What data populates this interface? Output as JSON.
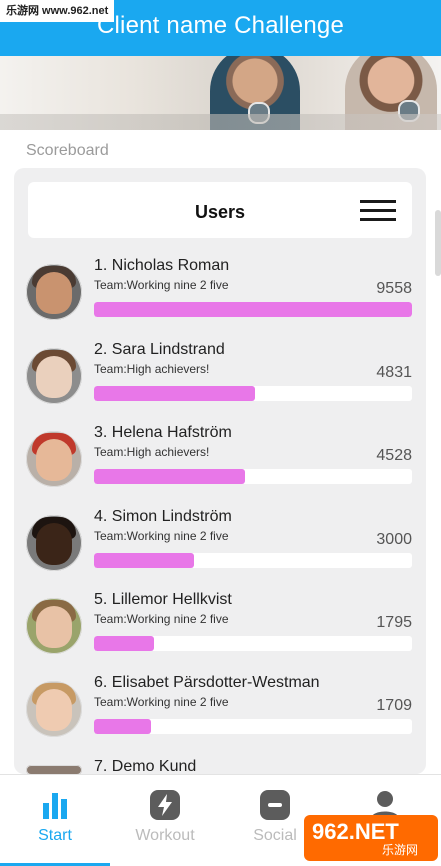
{
  "watermark": {
    "text": "乐游网 www.962.net"
  },
  "header": {
    "title": "Client name Challenge"
  },
  "section_label": "Scoreboard",
  "users_card": {
    "title": "Users"
  },
  "leaderboard": [
    {
      "name": "1. Nicholas Roman",
      "team": "Team:Working nine 2 five",
      "score": "9558",
      "progress": 1.0
    },
    {
      "name": "2. Sara Lindstrand",
      "team": "Team:High achievers!",
      "score": "4831",
      "progress": 0.505
    },
    {
      "name": "3. Helena Hafström",
      "team": "Team:High achievers!",
      "score": "4528",
      "progress": 0.474
    },
    {
      "name": "4. Simon Lindström",
      "team": "Team:Working nine 2 five",
      "score": "3000",
      "progress": 0.314
    },
    {
      "name": "5. Lillemor Hellkvist",
      "team": "Team:Working nine 2 five",
      "score": "1795",
      "progress": 0.188
    },
    {
      "name": "6. Elisabet Pärsdotter-Westman",
      "team": "Team:Working nine 2 five",
      "score": "1709",
      "progress": 0.179
    },
    {
      "name": "7. Demo Kund",
      "team": "",
      "score": "",
      "progress": 0
    }
  ],
  "bottom_nav": [
    {
      "label": "Start",
      "icon": "bar-chart-icon",
      "active": true
    },
    {
      "label": "Workout",
      "icon": "lightning-icon",
      "active": false
    },
    {
      "label": "Social",
      "icon": "chat-icon",
      "active": false
    },
    {
      "label": "",
      "icon": "person-icon",
      "active": false
    }
  ],
  "badge": {
    "big": "962.NET",
    "small": "乐游网"
  },
  "colors": {
    "accent": "#1aa8f0",
    "bar_fill": "#e877e8",
    "panel_bg": "#efeff0"
  }
}
